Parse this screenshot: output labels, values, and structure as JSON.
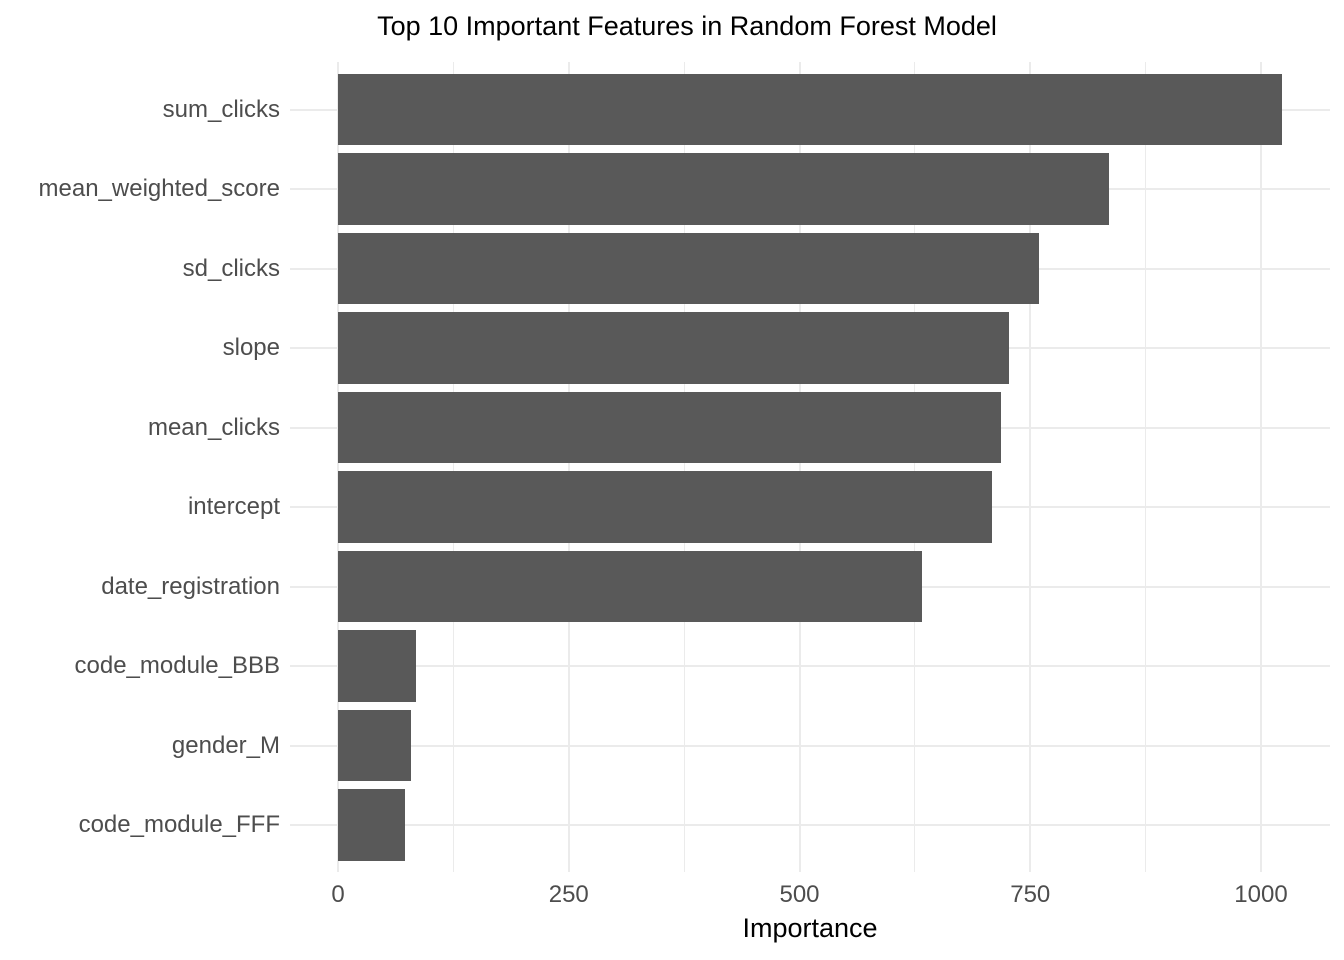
{
  "title": "Top 10 Important Features in Random Forest Model",
  "chart_data": {
    "type": "bar",
    "orientation": "horizontal",
    "title": "Top 10 Important Features in Random Forest Model",
    "xlabel": "Importance",
    "ylabel": "",
    "categories": [
      "sum_clicks",
      "mean_weighted_score",
      "sd_clicks",
      "slope",
      "mean_clicks",
      "intercept",
      "date_registration",
      "code_module_BBB",
      "gender_M",
      "code_module_FFF"
    ],
    "values": [
      1023,
      835,
      760,
      727,
      718,
      709,
      633,
      85,
      79,
      73
    ],
    "x_major_ticks": [
      0,
      250,
      500,
      750,
      1000
    ],
    "x_minor_ticks": [
      125,
      375,
      625,
      875
    ],
    "xlim": [
      0,
      1075
    ],
    "grid": "on",
    "legend": "none",
    "colors": {
      "bar": "#595959",
      "grid": "#ebebeb",
      "axis_text": "#4d4d4d",
      "title_text": "#000000",
      "background": "#ffffff"
    }
  }
}
